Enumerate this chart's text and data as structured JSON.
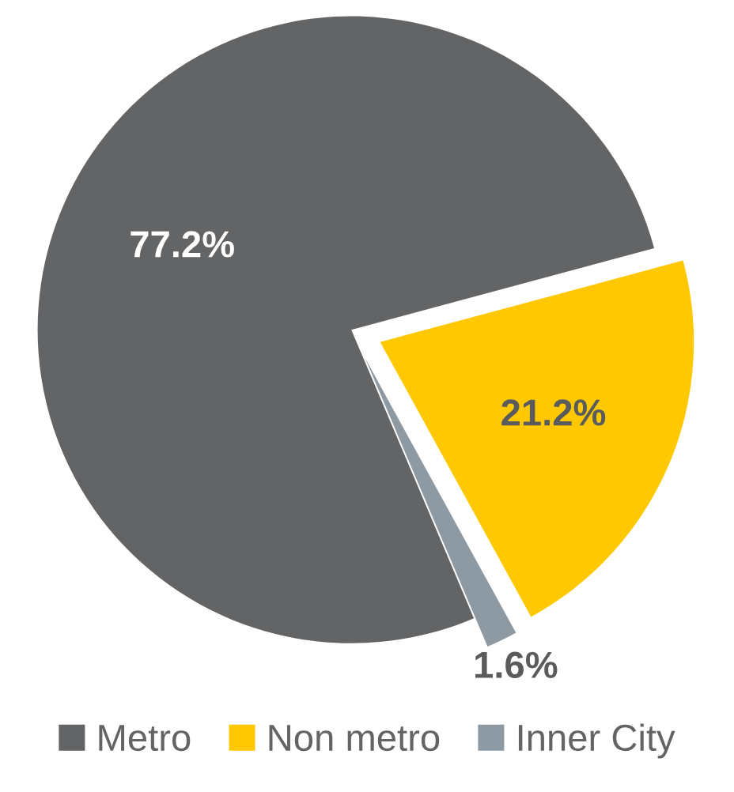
{
  "chart_data": {
    "type": "pie",
    "categories": [
      "Metro",
      "Non metro",
      "Inner City"
    ],
    "values": [
      77.2,
      21.2,
      1.6
    ],
    "colors": [
      "#636466",
      "#ffc800",
      "#8e9aa3"
    ],
    "value_labels": [
      "77.2%",
      "21.2%",
      "1.6%"
    ],
    "legend": "bottom"
  }
}
